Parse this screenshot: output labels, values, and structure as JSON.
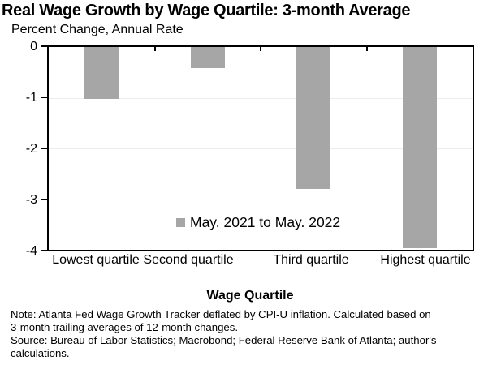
{
  "chart_data": {
    "type": "bar",
    "title": "Real Wage Growth by Wage Quartile: 3-month Average",
    "subtitle": "Percent Change, Annual Rate",
    "xlabel": "Wage Quartile",
    "ylabel": "",
    "categories": [
      "Lowest quartile",
      "Second quartile",
      "Third quartile",
      "Highest quartile"
    ],
    "series": [
      {
        "name": "May. 2021 to May. 2022",
        "values": [
          -1.02,
          -0.41,
          -2.8,
          -3.97
        ]
      }
    ],
    "ylim": [
      -4,
      0
    ],
    "yticks": [
      0,
      -1,
      -2,
      -3,
      -4
    ],
    "grid": true,
    "legend_position": "inside-bottom-center",
    "bar_color": "#a6a6a6",
    "gridline_color": "#ececec",
    "axis_color": "#000000"
  },
  "footnote": {
    "lines": [
      "Note: Atlanta Fed Wage Growth Tracker deflated by CPI-U inflation. Calculated based on",
      "3-month trailing averages of 12-month changes.",
      "Source: Bureau of Labor Statistics; Macrobond; Federal Reserve Bank of Atlanta; author's",
      "calculations."
    ]
  }
}
